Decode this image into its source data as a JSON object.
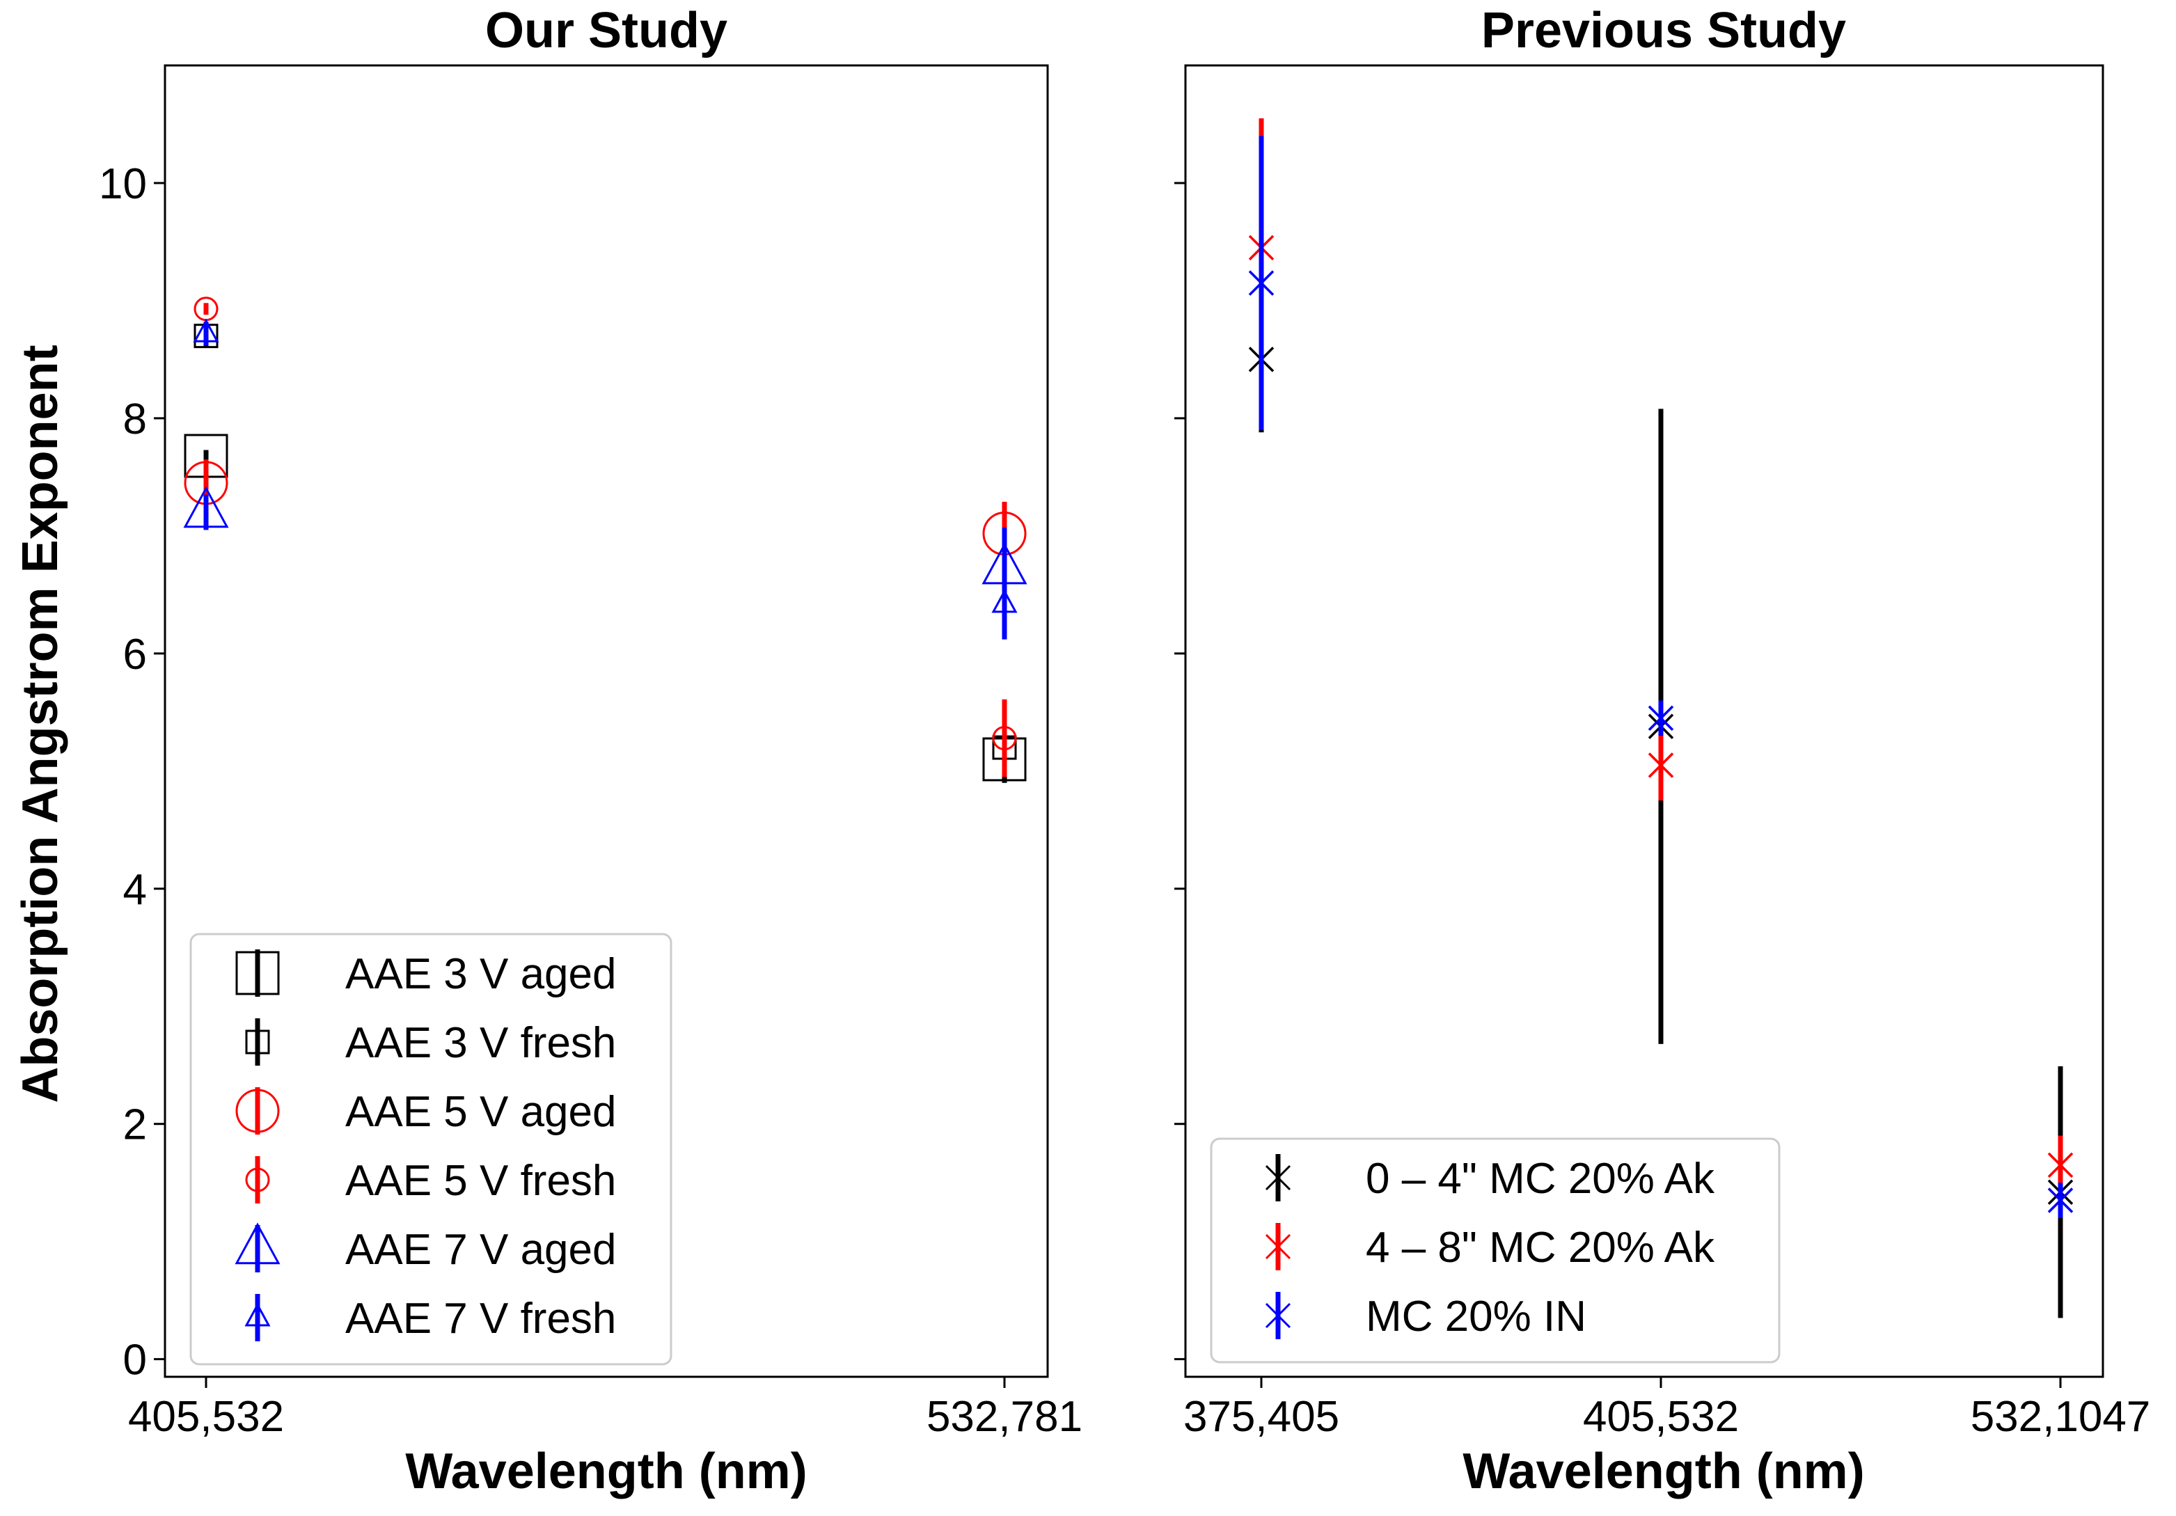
{
  "chart_data": [
    {
      "type": "scatter",
      "title": "Our Study",
      "xlabel": "Wavelength (nm)",
      "ylabel": "Absorption Angstrom Exponent",
      "categories": [
        "405,532",
        "532,781"
      ],
      "yticks": [
        "0",
        "2",
        "4",
        "6",
        "8",
        "10"
      ],
      "ylim": [
        -0.15,
        11.0
      ],
      "legend_position": "lower-left",
      "series": [
        {
          "name": "AAE 3 V aged",
          "marker": "square",
          "size": "large",
          "color": "#000000",
          "values": [
            7.68,
            5.1
          ],
          "errors": [
            0.05,
            0.05
          ]
        },
        {
          "name": "AAE 3 V fresh",
          "marker": "square",
          "size": "small",
          "color": "#000000",
          "values": [
            8.7,
            5.2
          ],
          "errors": [
            0.1,
            0.3
          ]
        },
        {
          "name": "AAE 5 V aged",
          "marker": "circle",
          "size": "large",
          "color": "#ff0000",
          "values": [
            7.45,
            7.02
          ],
          "errors": [
            0.2,
            0.27
          ]
        },
        {
          "name": "AAE 5 V fresh",
          "marker": "circle",
          "size": "small",
          "color": "#ff0000",
          "values": [
            8.93,
            5.28
          ],
          "errors": [
            0.05,
            0.33
          ]
        },
        {
          "name": "AAE 7 V aged",
          "marker": "triangle",
          "size": "large",
          "color": "#0000ff",
          "values": [
            7.2,
            6.72
          ],
          "errors": [
            0.15,
            0.35
          ]
        },
        {
          "name": "AAE 7 V fresh",
          "marker": "triangle",
          "size": "small",
          "color": "#0000ff",
          "values": [
            8.72,
            6.42
          ],
          "errors": [
            0.1,
            0.3
          ]
        }
      ]
    },
    {
      "type": "scatter",
      "title": "Previous Study",
      "xlabel": "Wavelength (nm)",
      "ylabel": "",
      "categories": [
        "375,405",
        "405,532",
        "532,1047"
      ],
      "ylim": [
        -0.15,
        11.0
      ],
      "legend_position": "lower-left",
      "series": [
        {
          "name": "0 – 4\" MC 20% Ak",
          "marker": "x",
          "color": "#000000",
          "values": [
            8.5,
            5.38,
            1.42
          ],
          "errors": [
            0.62,
            2.7,
            1.07
          ]
        },
        {
          "name": "4 – 8\" MC 20% Ak",
          "marker": "x",
          "color": "#ff0000",
          "values": [
            9.45,
            5.05,
            1.65
          ],
          "errors": [
            1.1,
            0.3,
            0.25
          ]
        },
        {
          "name": "MC 20% IN",
          "marker": "x",
          "color": "#0000ff",
          "values": [
            9.15,
            5.45,
            1.35
          ],
          "errors": [
            1.25,
            0.15,
            0.15
          ]
        }
      ]
    }
  ]
}
